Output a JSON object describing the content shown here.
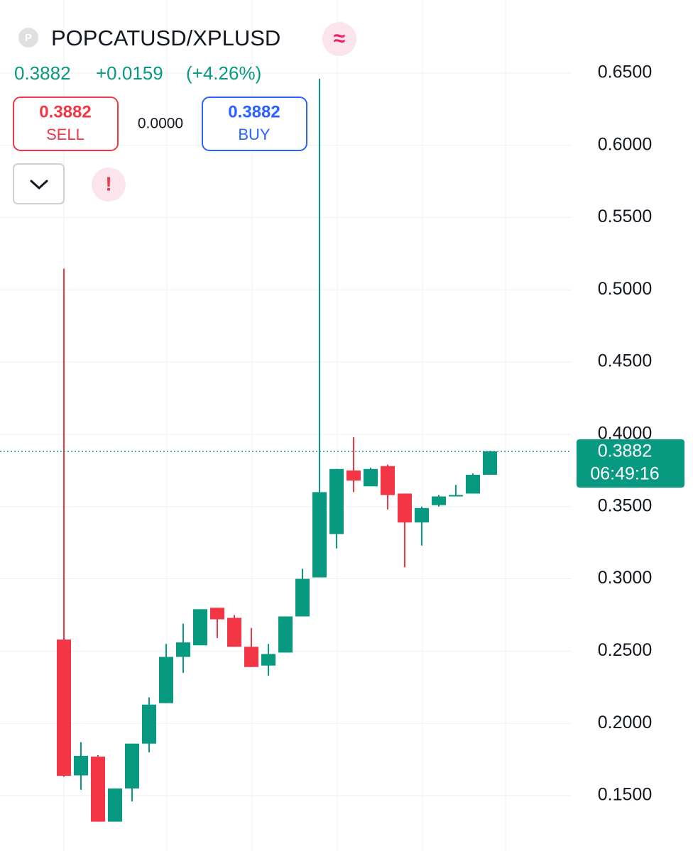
{
  "header": {
    "icon": "P",
    "symbol": "POPCATUSD/XPLUSD",
    "badge": "≈"
  },
  "quote": {
    "price": "0.3882",
    "change": "+0.0159",
    "change_pct": "(+4.26%)"
  },
  "sell": {
    "price": "0.3882",
    "label": "SELL"
  },
  "spread": "0.0000",
  "buy": {
    "price": "0.3882",
    "label": "BUY"
  },
  "alert": "!",
  "chart_data": {
    "type": "candlestick",
    "up_color": "#089981",
    "down_color": "#f23645",
    "open": [
      0.258,
      0.164,
      0.177,
      0.132,
      0.155,
      0.186,
      0.214,
      0.246,
      0.254,
      0.28,
      0.273,
      0.253,
      0.24,
      0.249,
      0.274,
      0.301,
      0.331,
      0.375,
      0.364,
      0.378,
      0.359,
      0.339,
      0.351,
      0.357,
      0.359,
      0.372
    ],
    "high": [
      0.5146,
      0.187,
      0.178,
      0.155,
      0.186,
      0.218,
      0.255,
      0.269,
      0.279,
      0.28,
      0.275,
      0.266,
      0.255,
      0.274,
      0.307,
      0.646,
      0.376,
      0.398,
      0.377,
      0.379,
      0.359,
      0.35,
      0.358,
      0.365,
      0.373,
      0.3886
    ],
    "low": [
      0.163,
      0.154,
      0.132,
      0.132,
      0.146,
      0.18,
      0.214,
      0.235,
      0.254,
      0.259,
      0.253,
      0.239,
      0.233,
      0.249,
      0.274,
      0.301,
      0.321,
      0.36,
      0.364,
      0.348,
      0.308,
      0.323,
      0.35,
      0.357,
      0.359,
      0.372
    ],
    "close": [
      0.1637,
      0.1775,
      0.132,
      0.155,
      0.186,
      0.213,
      0.246,
      0.256,
      0.279,
      0.272,
      0.253,
      0.239,
      0.248,
      0.274,
      0.3,
      0.36,
      0.376,
      0.368,
      0.376,
      0.358,
      0.339,
      0.349,
      0.357,
      0.358,
      0.372,
      0.3882
    ],
    "ylim": [
      0.1117,
      0.7005
    ],
    "yticks": [
      {
        "value": 0.15,
        "label": "0.1500"
      },
      {
        "value": 0.2,
        "label": "0.2000"
      },
      {
        "value": 0.25,
        "label": "0.2500"
      },
      {
        "value": 0.3,
        "label": "0.3000"
      },
      {
        "value": 0.35,
        "label": "0.3500"
      },
      {
        "value": 0.4,
        "label": "0.4000"
      },
      {
        "value": 0.45,
        "label": "0.4500"
      },
      {
        "value": 0.5,
        "label": "0.5000"
      },
      {
        "value": 0.55,
        "label": "0.5500"
      },
      {
        "value": 0.6,
        "label": "0.6000"
      },
      {
        "value": 0.65,
        "label": "0.6500"
      }
    ],
    "grid": true,
    "last_price": 0.3882,
    "timer": "06:49:16"
  }
}
